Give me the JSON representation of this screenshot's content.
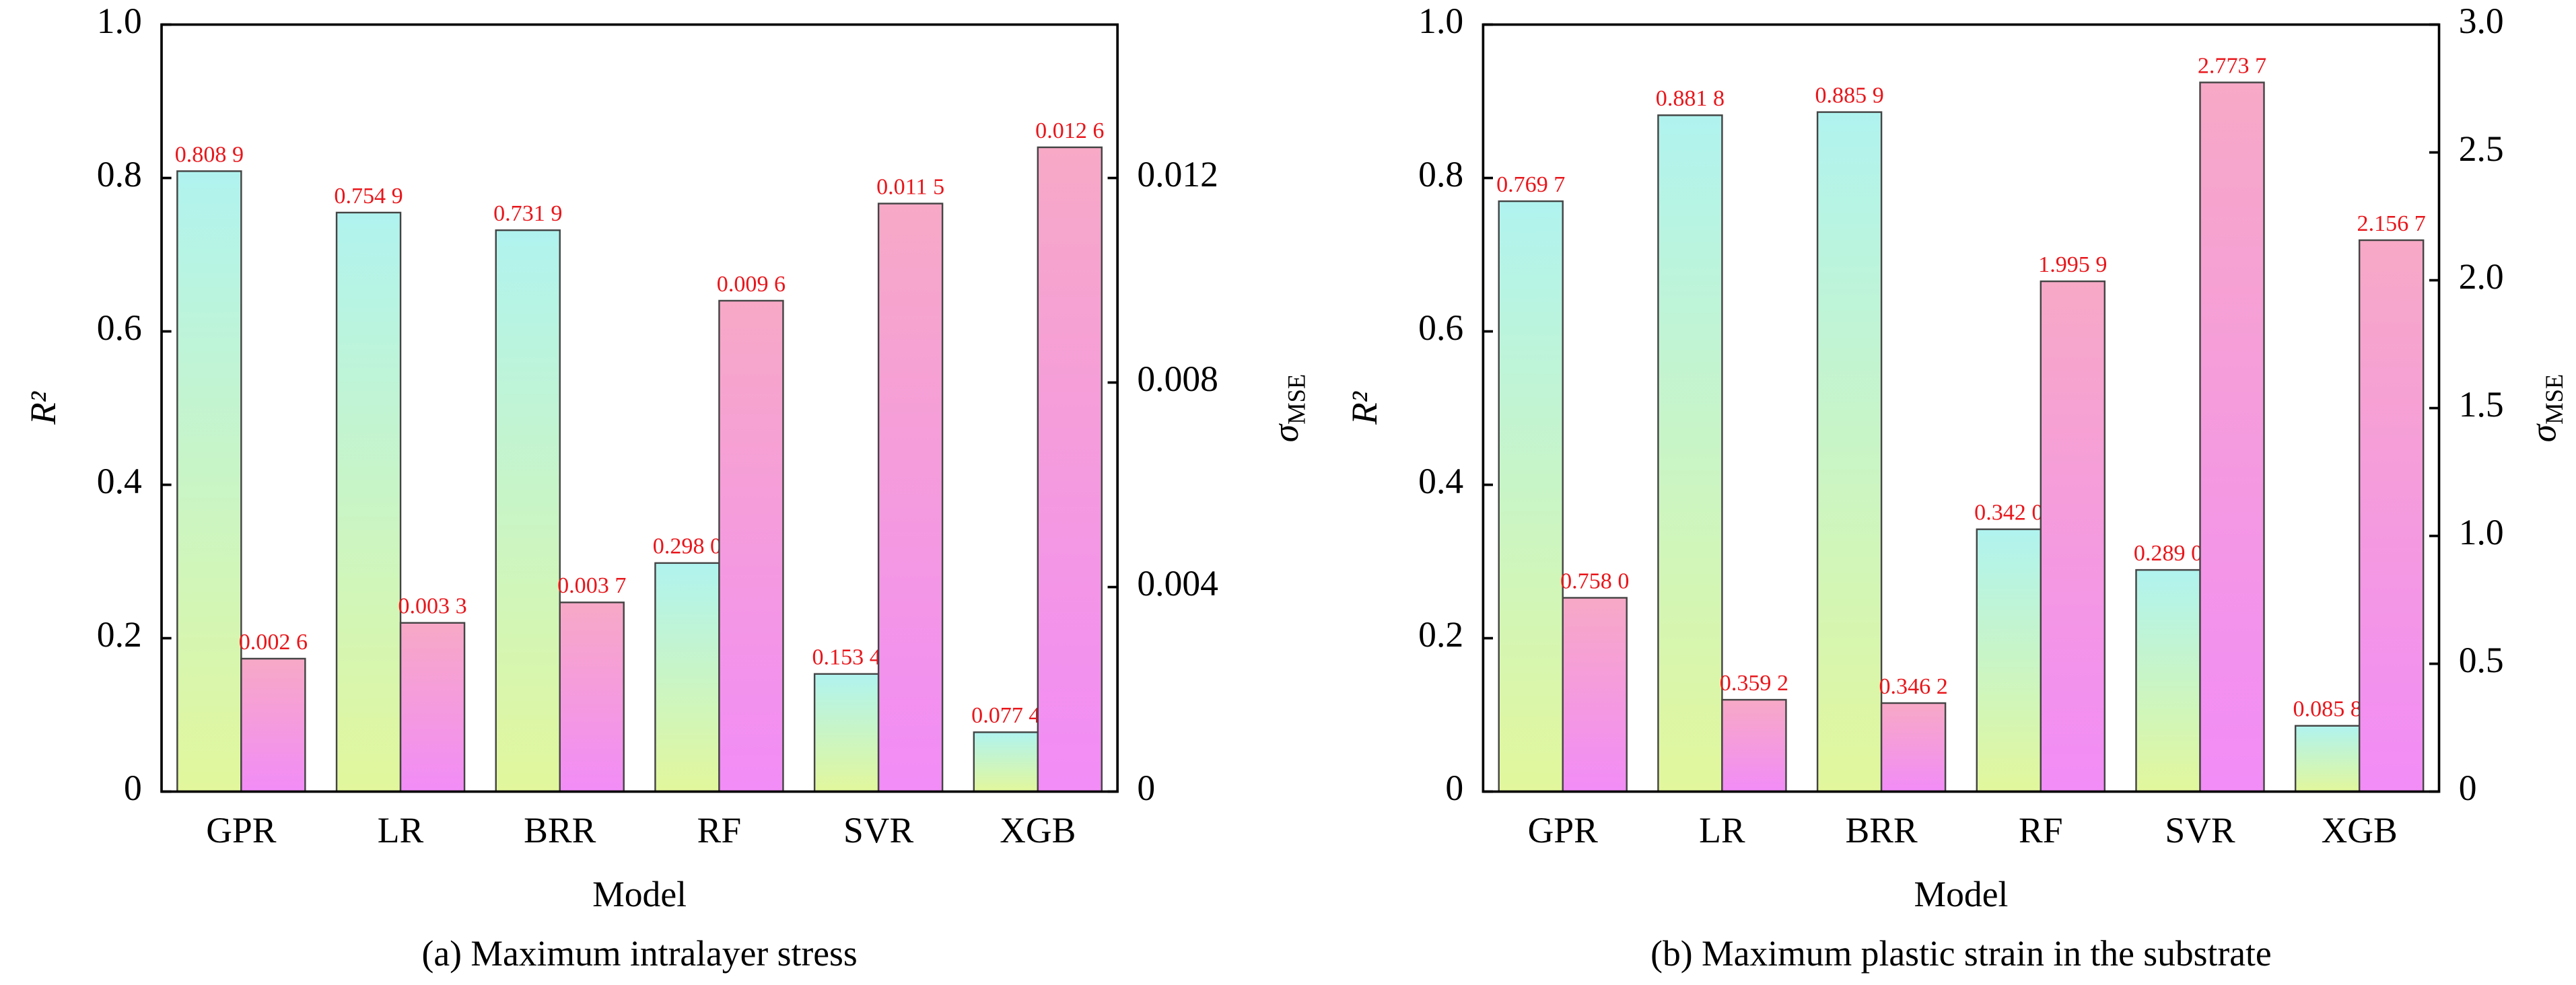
{
  "chart_data": [
    {
      "type": "bar",
      "caption": "(a) Maximum intralayer stress",
      "x_label": "Model",
      "y_label": "R²",
      "y2_label": {
        "symbol": "σ",
        "subscript": "MSE"
      },
      "categories": [
        "GPR",
        "LR",
        "BRR",
        "RF",
        "SVR",
        "XGB"
      ],
      "ylim": [
        0,
        1
      ],
      "yticks": [
        0,
        0.2,
        0.4,
        0.6,
        0.8,
        {
          "value": 1,
          "label": "1.0"
        }
      ],
      "y2lim": [
        0,
        0.015
      ],
      "y2ticks": [
        0,
        0.004,
        0.008,
        0.012
      ],
      "series": [
        {
          "gradient": [
            "#b0f3ef",
            "#e2f79c"
          ],
          "values": [
            0.8089,
            0.7549,
            0.7319,
            0.298,
            0.1534,
            0.0774
          ],
          "value_labels": [
            "0.808 9",
            "0.754 9",
            "0.731 9",
            "0.298 0",
            "0.153 4",
            "0.077 4"
          ]
        },
        {
          "axis": "y2",
          "gradient": [
            "#f7a9c6",
            "#f28cf7"
          ],
          "values": [
            0.0026,
            0.0033,
            0.0037,
            0.0096,
            0.0115,
            0.0126
          ],
          "value_labels": [
            "0.002 6",
            "0.003 3",
            "0.003 7",
            "0.009 6",
            "0.011 5",
            "0.012 6"
          ]
        }
      ]
    },
    {
      "type": "bar",
      "caption": "(b) Maximum plastic strain in the substrate",
      "x_label": "Model",
      "y_label": "R²",
      "y2_label": {
        "symbol": "σ",
        "subscript": "MSE"
      },
      "categories": [
        "GPR",
        "LR",
        "BRR",
        "RF",
        "SVR",
        "XGB"
      ],
      "ylim": [
        0,
        1
      ],
      "yticks": [
        0,
        0.2,
        0.4,
        0.6,
        0.8,
        {
          "value": 1,
          "label": "1.0"
        }
      ],
      "y2lim": [
        0,
        3
      ],
      "y2ticks": [
        0,
        0.5,
        {
          "value": 1,
          "label": "1.0"
        },
        1.5,
        {
          "value": 2,
          "label": "2.0"
        },
        2.5,
        {
          "value": 3,
          "label": "3.0"
        }
      ],
      "series": [
        {
          "gradient": [
            "#b0f3ef",
            "#e2f79c"
          ],
          "values": [
            0.7697,
            0.8818,
            0.8859,
            0.342,
            0.289,
            0.0858
          ],
          "value_labels": [
            "0.769 7",
            "0.881 8",
            "0.885 9",
            "0.342 0",
            "0.289 0",
            "0.085 8"
          ]
        },
        {
          "axis": "y2",
          "gradient": [
            "#f7a9c6",
            "#f28cf7"
          ],
          "values": [
            0.758,
            0.3592,
            0.3462,
            1.9959,
            2.7737,
            2.1567
          ],
          "value_labels": [
            "0.758 0",
            "0.359 2",
            "0.346 2",
            "1.995 9",
            "2.773 7",
            "2.156 7"
          ]
        }
      ]
    }
  ]
}
